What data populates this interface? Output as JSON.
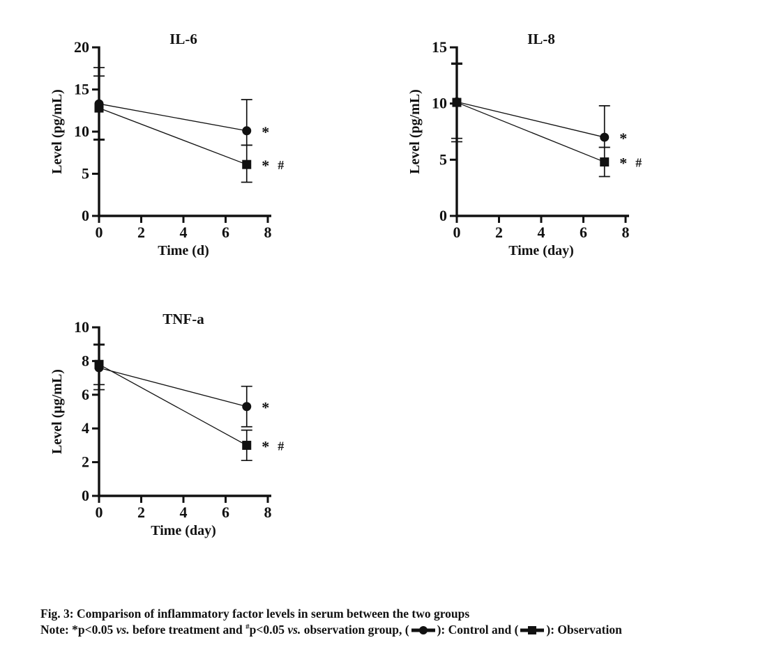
{
  "page": {
    "background": "#ffffff"
  },
  "colors": {
    "ink": "#111111"
  },
  "caption": {
    "title": "Fig. 3: Comparison of inflammatory factor levels in serum between the two groups",
    "note": {
      "p1": "Note: *p<0.05 ",
      "vs1": "vs.",
      "p2": " before treatment and ",
      "sup": "#",
      "p3": "p<0.05 ",
      "vs2": "vs.",
      "p4": " observation group, (",
      "p5": "): Control and (",
      "p6": "): Observation"
    }
  },
  "chart_data": [
    {
      "type": "line",
      "title": "IL-6",
      "xlabel": "Time (d)",
      "ylabel": "Level (pg/mL)",
      "xlim": [
        0,
        8
      ],
      "ylim": [
        0,
        20
      ],
      "xticks": [
        0,
        2,
        4,
        6,
        8
      ],
      "yticks": [
        0,
        5,
        10,
        15,
        20
      ],
      "x": [
        0,
        7
      ],
      "grid": false,
      "legend_position": "none",
      "series": [
        {
          "name": "Control",
          "marker": "circle",
          "values": [
            13.3,
            10.1
          ],
          "err_hi": [
            17.6,
            13.8
          ],
          "err_lo": [
            9.0,
            8.4
          ],
          "sig": [
            "*"
          ]
        },
        {
          "name": "Observation",
          "marker": "square",
          "values": [
            12.8,
            6.1
          ],
          "err_hi": [
            16.6,
            8.4
          ],
          "err_lo": [
            9.1,
            4.0
          ],
          "sig": [
            "*",
            "#"
          ]
        }
      ]
    },
    {
      "type": "line",
      "title": "IL-8",
      "xlabel": "Time (day)",
      "ylabel": "Level (pg/mL)",
      "xlim": [
        0,
        8
      ],
      "ylim": [
        0,
        15
      ],
      "xticks": [
        0,
        2,
        4,
        6,
        8
      ],
      "yticks": [
        0,
        5,
        10,
        15
      ],
      "x": [
        0,
        7
      ],
      "grid": false,
      "legend_position": "none",
      "series": [
        {
          "name": "Control",
          "marker": "circle",
          "values": [
            10.15,
            7.0
          ],
          "err_hi": [
            13.6,
            9.8
          ],
          "err_lo": [
            6.9,
            6.1
          ],
          "sig": [
            "*"
          ]
        },
        {
          "name": "Observation",
          "marker": "square",
          "values": [
            10.1,
            4.8
          ],
          "err_hi": [
            13.5,
            6.1
          ],
          "err_lo": [
            6.6,
            3.5
          ],
          "sig": [
            "*",
            "#"
          ]
        }
      ]
    },
    {
      "type": "line",
      "title": "TNF-a",
      "xlabel": "Time (day)",
      "ylabel": "Level (μg/mL)",
      "xlim": [
        0,
        8
      ],
      "ylim": [
        0,
        10
      ],
      "xticks": [
        0,
        2,
        4,
        6,
        8
      ],
      "yticks": [
        0,
        2,
        4,
        6,
        8,
        10
      ],
      "x": [
        0,
        7
      ],
      "grid": false,
      "legend_position": "none",
      "series": [
        {
          "name": "Control",
          "marker": "circle",
          "values": [
            7.6,
            5.3
          ],
          "err_hi": [
            9.0,
            6.5
          ],
          "err_lo": [
            6.3,
            4.1
          ],
          "sig": [
            "*"
          ]
        },
        {
          "name": "Observation",
          "marker": "square",
          "values": [
            7.8,
            3.0
          ],
          "err_hi": [
            8.95,
            3.9
          ],
          "err_lo": [
            6.6,
            2.1
          ],
          "sig": [
            "*",
            "#"
          ]
        }
      ]
    }
  ]
}
